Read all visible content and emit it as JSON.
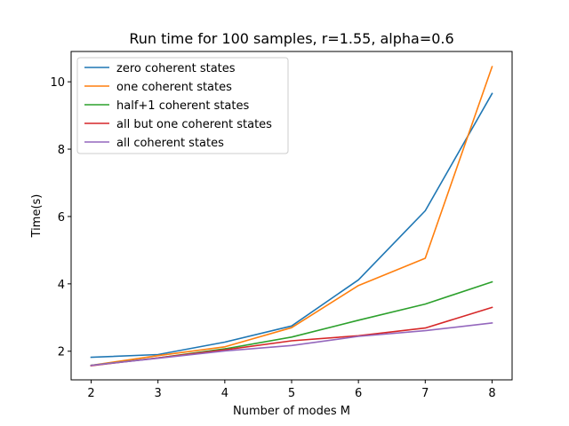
{
  "chart_data": {
    "type": "line",
    "title": "Run time for 100 samples, r=1.55, alpha=0.6",
    "xlabel": "Number of modes M",
    "ylabel": "Time(s)",
    "x": [
      2,
      3,
      4,
      5,
      6,
      7,
      8
    ],
    "xlim": [
      1.7,
      8.3
    ],
    "ylim": [
      1.15,
      10.9
    ],
    "xticks": [
      "2",
      "3",
      "4",
      "5",
      "6",
      "7",
      "8"
    ],
    "yticks": [
      "2",
      "4",
      "6",
      "8",
      "10"
    ],
    "grid": false,
    "legend_position": "upper-left",
    "series": [
      {
        "name": "zero coherent states",
        "color": "#1f77b4",
        "values": [
          1.82,
          1.9,
          2.27,
          2.75,
          4.12,
          6.17,
          9.65
        ]
      },
      {
        "name": "one coherent states",
        "color": "#ff7f0e",
        "values": [
          1.58,
          1.87,
          2.13,
          2.7,
          3.95,
          4.76,
          10.45
        ]
      },
      {
        "name": "half+1 coherent states",
        "color": "#2ca02c",
        "values": [
          1.58,
          1.8,
          2.07,
          2.42,
          2.92,
          3.4,
          4.06
        ]
      },
      {
        "name": "all but one coherent states",
        "color": "#d62728",
        "values": [
          1.57,
          1.8,
          2.04,
          2.31,
          2.46,
          2.69,
          3.3
        ]
      },
      {
        "name": "all coherent states",
        "color": "#9467bd",
        "values": [
          1.58,
          1.79,
          2.01,
          2.17,
          2.44,
          2.61,
          2.84
        ]
      }
    ]
  }
}
